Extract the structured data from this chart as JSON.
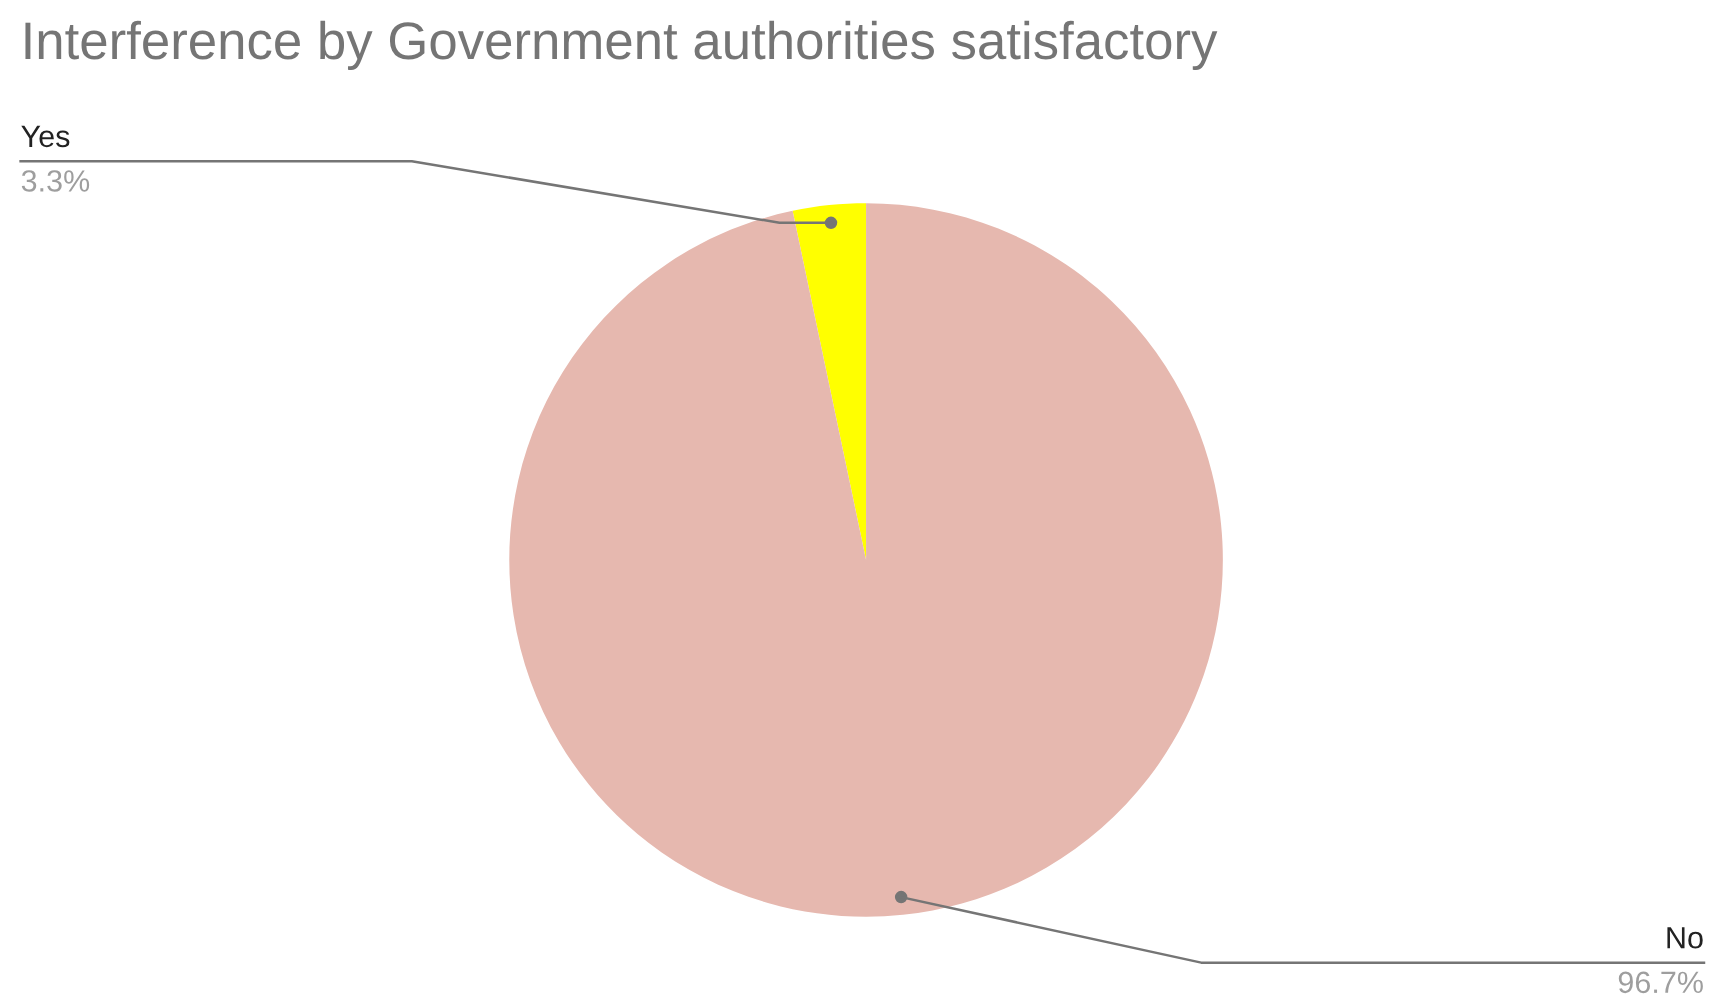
{
  "chart_data": {
    "type": "pie",
    "title": "Interference by Government authorities satisfactory",
    "categories": [
      "Yes",
      "No"
    ],
    "values": [
      3.3,
      96.7
    ],
    "colors": [
      "#ffff00",
      "#e6b8af"
    ],
    "value_labels": [
      "3.3%",
      "96.7%"
    ],
    "legend": false
  }
}
